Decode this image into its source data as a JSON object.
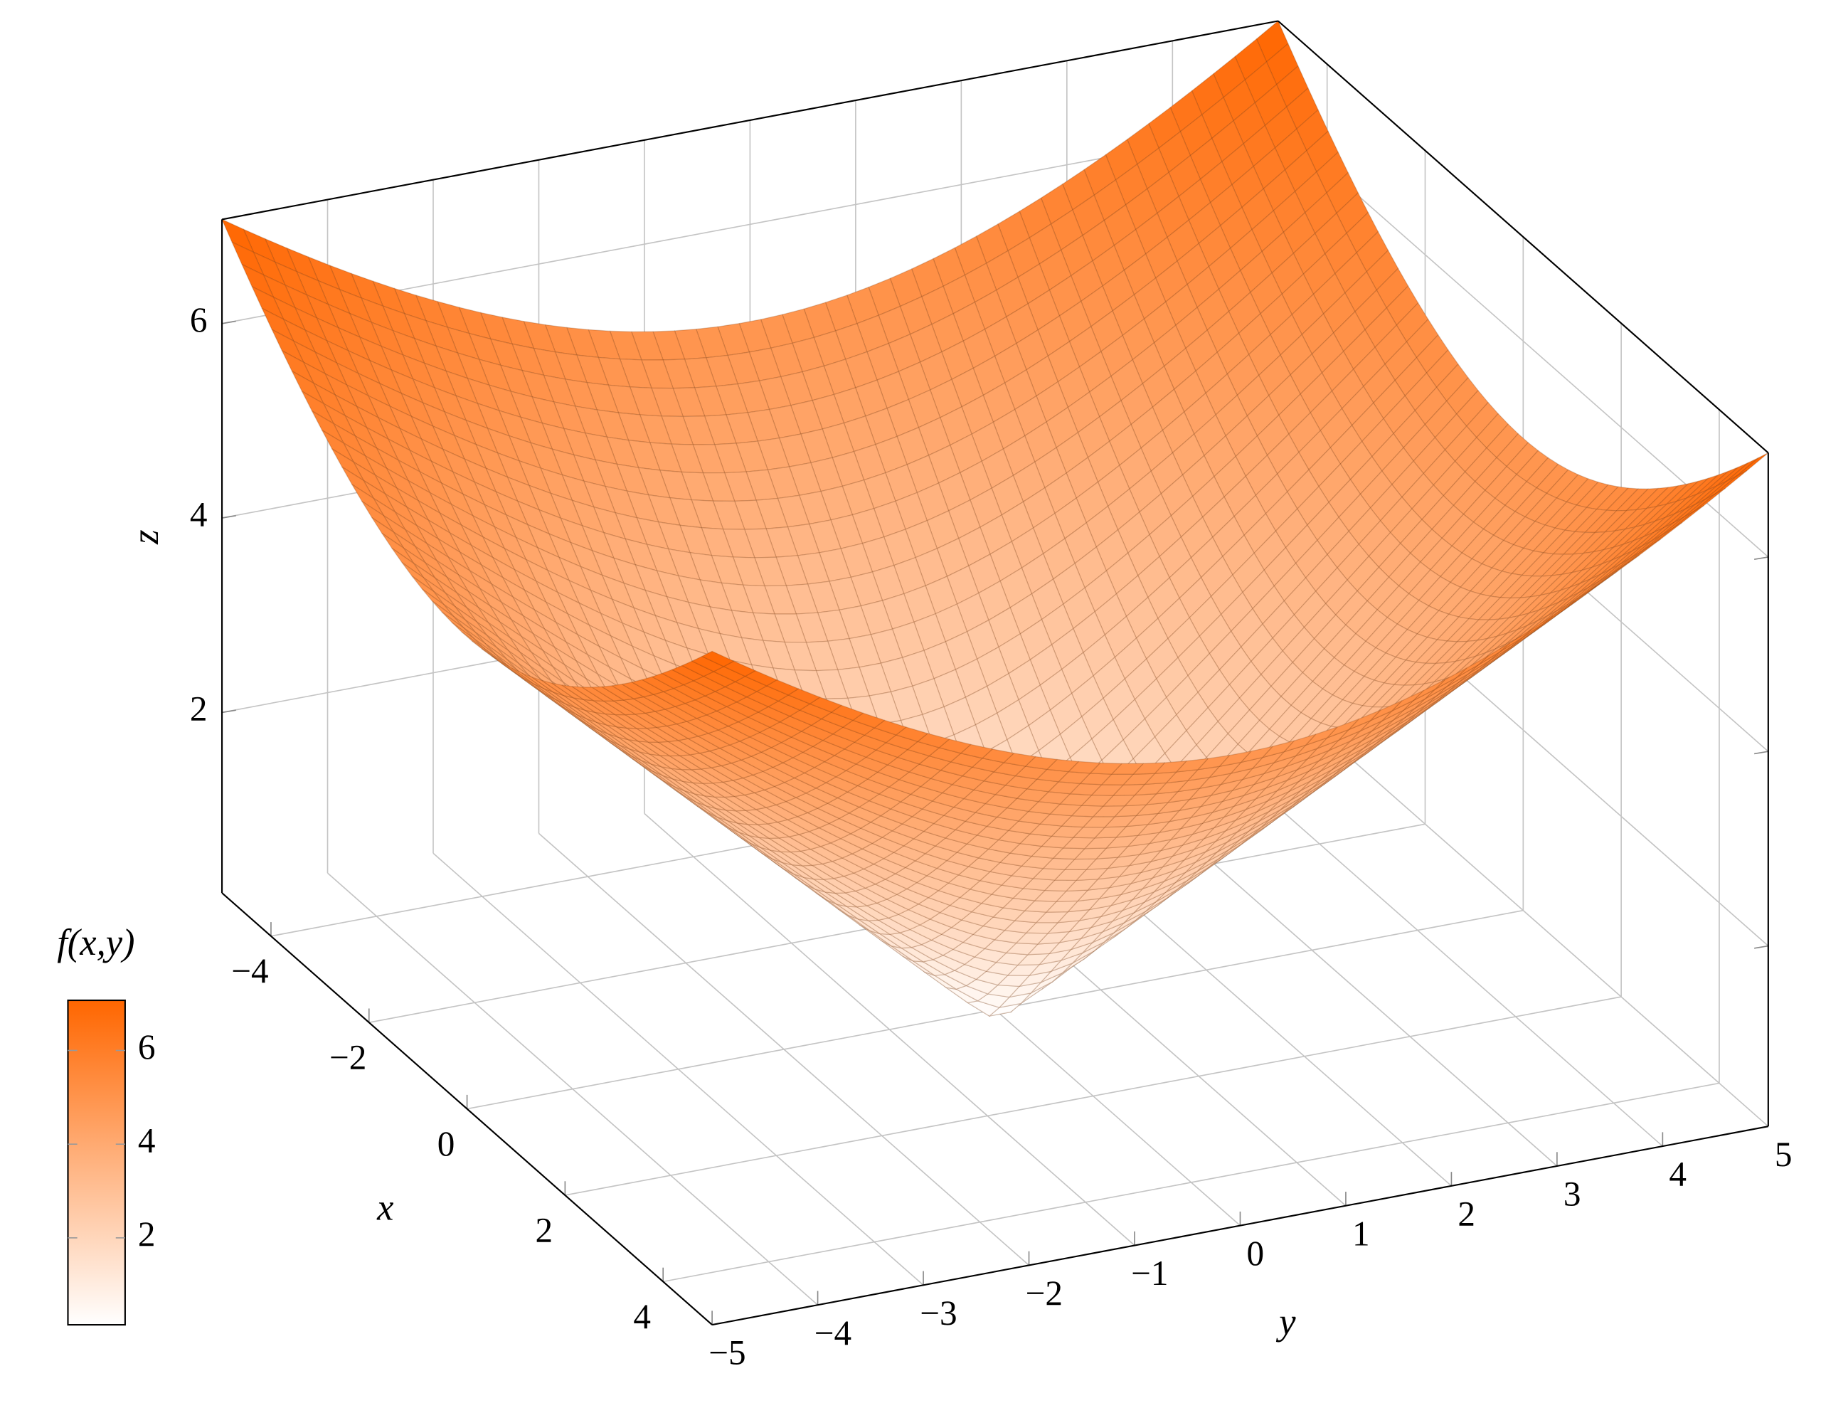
{
  "chart_data": {
    "type": "surface",
    "title": "",
    "xlabel": "x",
    "ylabel": "y",
    "zlabel": "z",
    "colorbar_label": "f(x,y)",
    "function": "sqrt(x^2+y^2)",
    "xlim": [
      -5,
      5
    ],
    "ylim": [
      -5,
      5
    ],
    "zlim": [
      0.144,
      7.071
    ],
    "samples": 50,
    "x_ticks": [
      "−4",
      "−2",
      "0",
      "2",
      "4"
    ],
    "x_tick_values": [
      -4,
      -2,
      0,
      2,
      4
    ],
    "y_ticks": [
      "−5",
      "−4",
      "−3",
      "−2",
      "−1",
      "0",
      "1",
      "2",
      "3",
      "4",
      "5"
    ],
    "y_tick_values": [
      -5,
      -4,
      -3,
      -2,
      -1,
      0,
      1,
      2,
      3,
      4,
      5
    ],
    "z_ticks": [
      "2",
      "4",
      "6"
    ],
    "z_tick_values": [
      2,
      4,
      6
    ],
    "colorbar_ticks": [
      "2",
      "4",
      "6"
    ],
    "colorbar_tick_values": [
      2,
      4,
      6
    ],
    "colormap": [
      "#ffffff",
      "#ff6600"
    ],
    "grid": true,
    "colorbar_placement": "left"
  }
}
